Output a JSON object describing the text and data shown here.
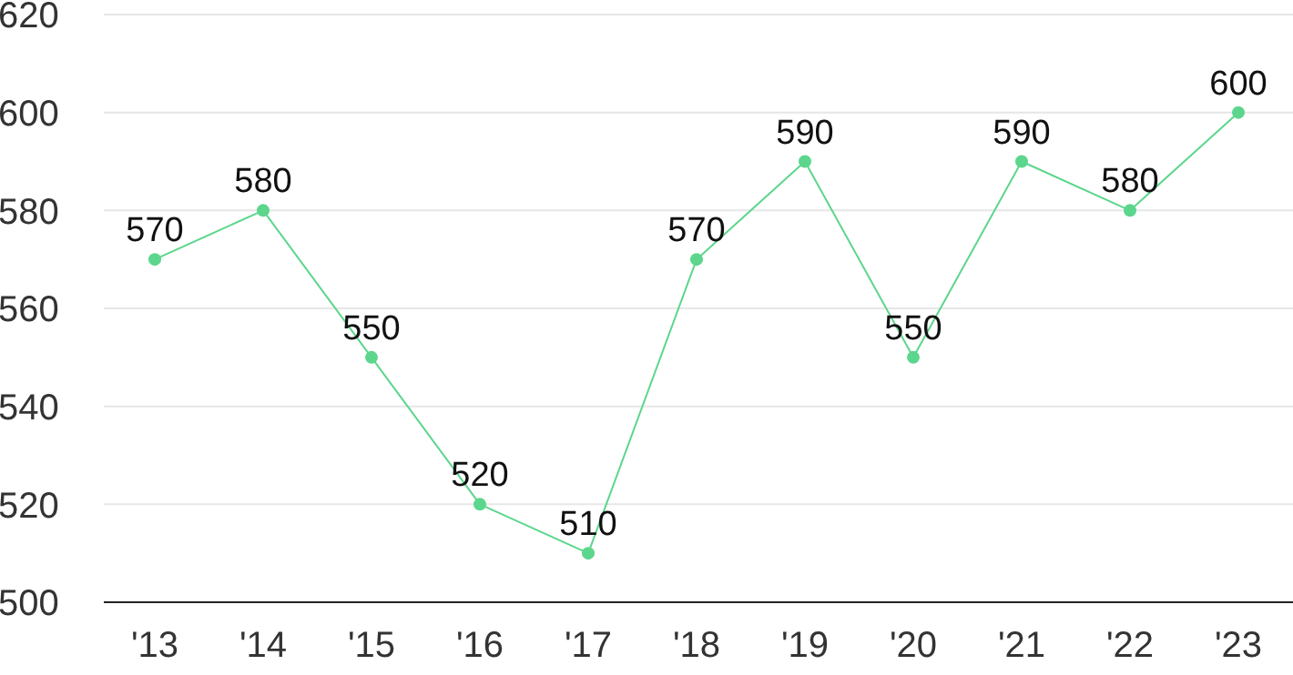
{
  "chart_data": {
    "type": "line",
    "categories": [
      "'13",
      "'14",
      "'15",
      "'16",
      "'17",
      "'18",
      "'19",
      "'20",
      "'21",
      "'22",
      "'23"
    ],
    "series": [
      {
        "color": "#5cd68c",
        "values": [
          570,
          580,
          550,
          520,
          510,
          570,
          590,
          550,
          590,
          580,
          600
        ]
      }
    ],
    "ylim": [
      500,
      620
    ],
    "yticks": [
      500,
      520,
      540,
      560,
      580,
      600,
      620
    ],
    "grid": "y",
    "marker": "circle",
    "line_style": "solid",
    "data_labels": true
  }
}
